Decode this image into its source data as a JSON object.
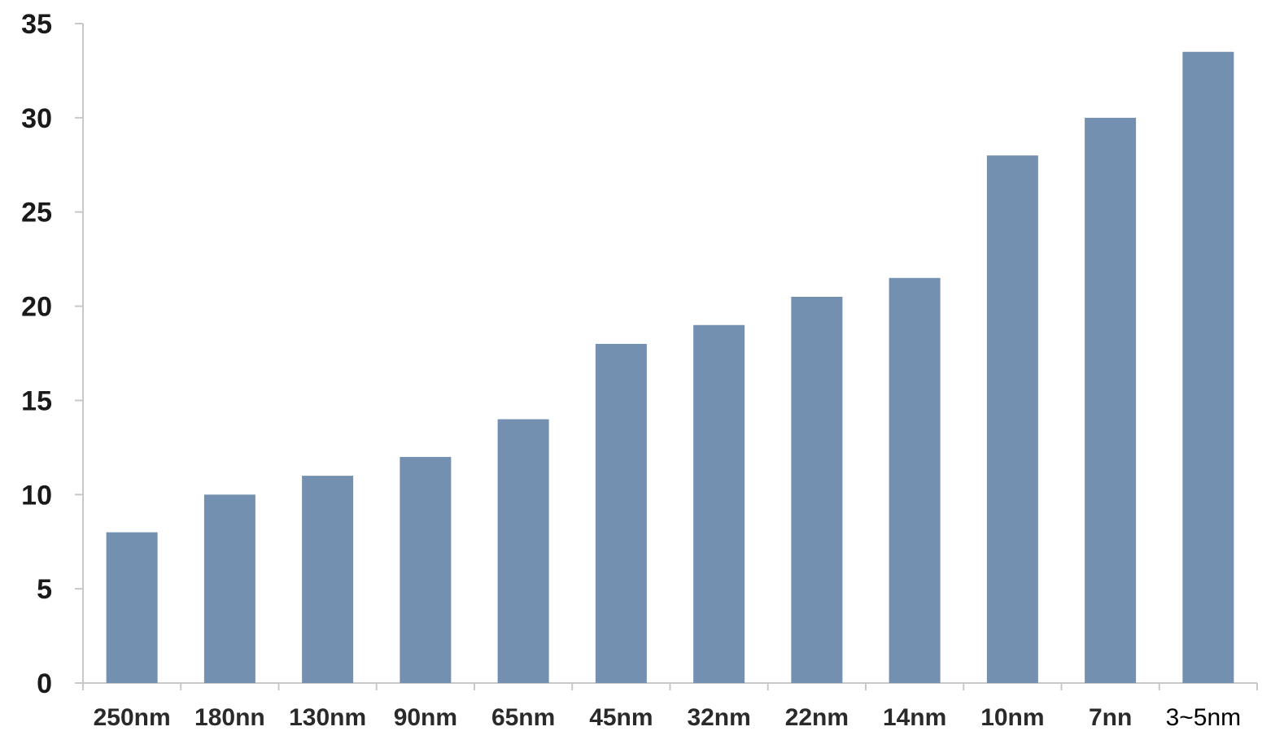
{
  "chart_data": {
    "type": "bar",
    "categories": [
      "250nm",
      "180nn",
      "130nm",
      "90nm",
      "65nm",
      "45nm",
      "32nm",
      "22nm",
      "14nm",
      "10nm",
      "7nn",
      "3~5nm"
    ],
    "values": [
      8,
      10,
      11,
      12,
      14,
      18,
      19,
      20.5,
      21.5,
      28,
      30,
      33.5
    ],
    "ylim": [
      0,
      35
    ],
    "yticks": [
      0,
      5,
      10,
      15,
      20,
      25,
      30,
      35
    ],
    "grid": false,
    "legend": "none",
    "colors": {
      "bar": "#7390b0",
      "axis": "#c8c8c8",
      "text": "#1a1a1a"
    }
  }
}
